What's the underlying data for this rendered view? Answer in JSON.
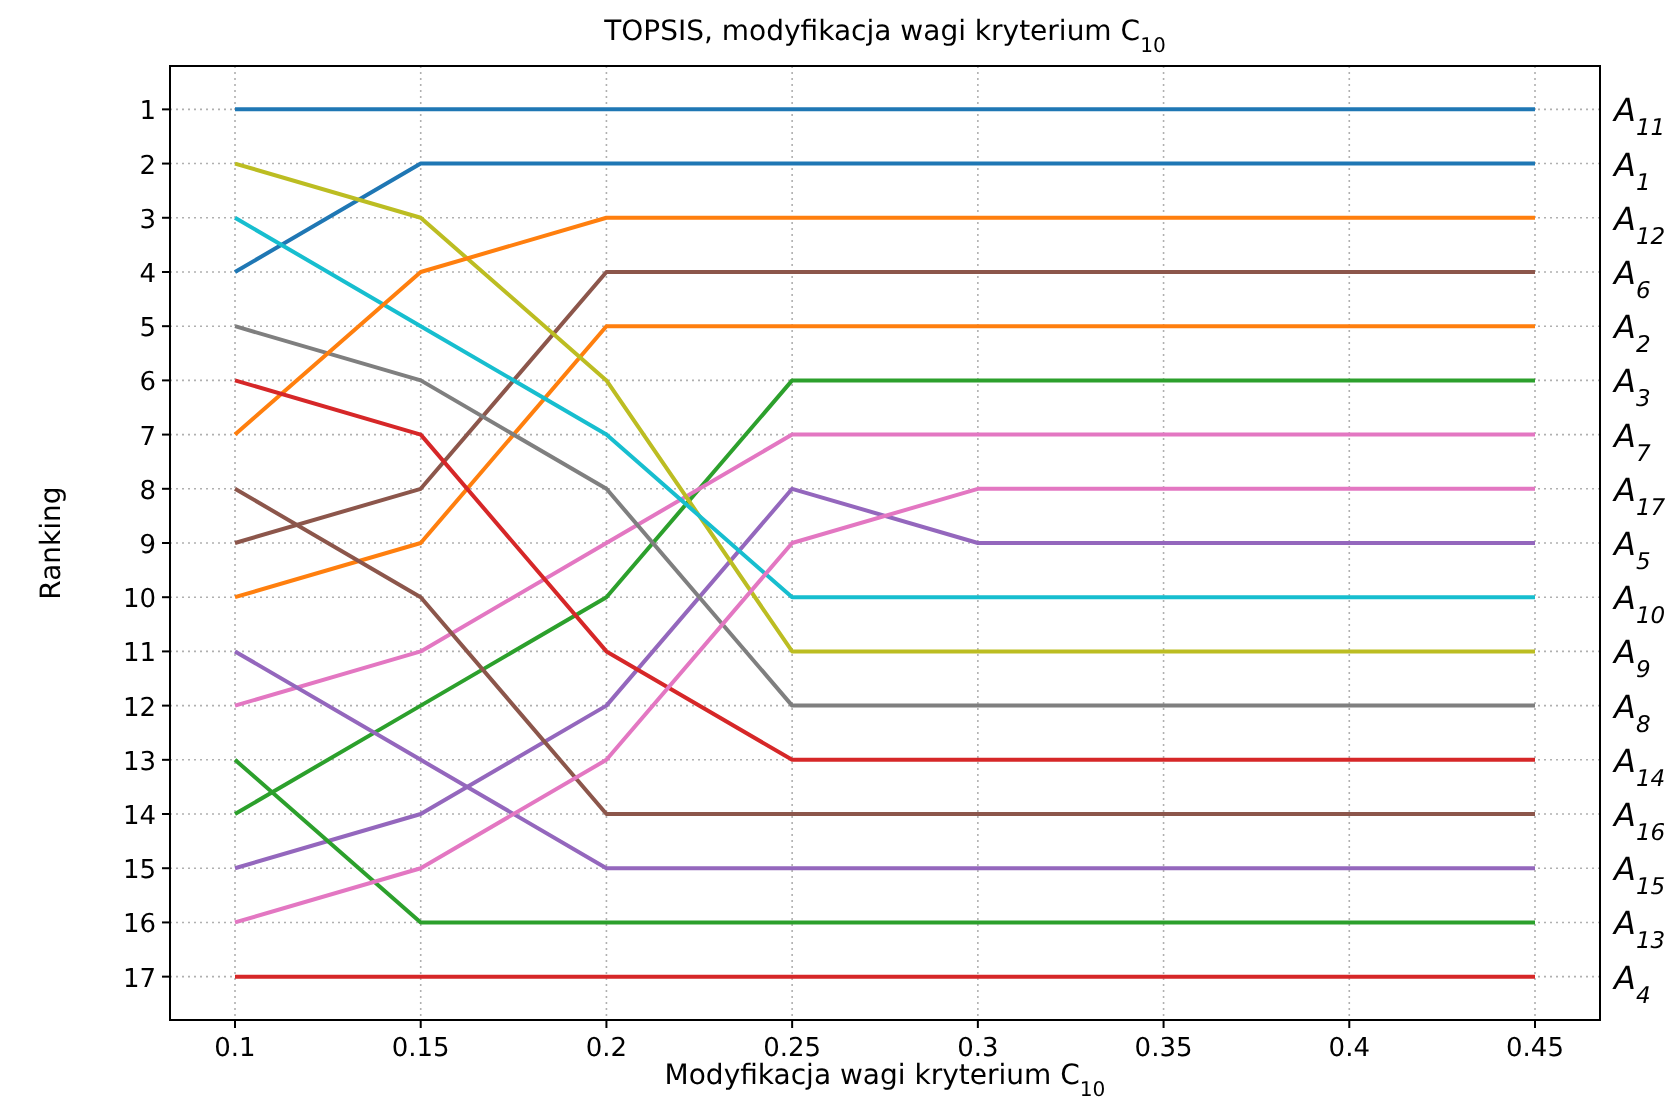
{
  "chart_data": {
    "type": "line",
    "title": "TOPSIS, modyfikacja wagi kryterium C$_{10}$",
    "xlabel": "Modyfikacja wagi kryterium C$_{10}$",
    "ylabel": "Ranking",
    "x": [
      0.1,
      0.15,
      0.2,
      0.25,
      0.3,
      0.35,
      0.4,
      0.45
    ],
    "xlim": [
      0.0825,
      0.4675
    ],
    "xticks": [
      0.1,
      0.15,
      0.2,
      0.25,
      0.3,
      0.35,
      0.4,
      0.45
    ],
    "ylim": [
      17.8,
      0.2
    ],
    "yticks": [
      1,
      2,
      3,
      4,
      5,
      6,
      7,
      8,
      9,
      10,
      11,
      12,
      13,
      14,
      15,
      16,
      17
    ],
    "grid": true,
    "marker": "none",
    "line_style": "solid",
    "series": [
      {
        "name": "A$_{1}$",
        "color": "#1f77b4",
        "values": [
          4,
          2,
          2,
          2,
          2,
          2,
          2,
          2
        ]
      },
      {
        "name": "A$_{2}$",
        "color": "#ff7f0e",
        "values": [
          10,
          9,
          5,
          5,
          5,
          5,
          5,
          5
        ]
      },
      {
        "name": "A$_{3}$",
        "color": "#2ca02c",
        "values": [
          14,
          12,
          10,
          6,
          6,
          6,
          6,
          6
        ]
      },
      {
        "name": "A$_{4}$",
        "color": "#d62728",
        "values": [
          17,
          17,
          17,
          17,
          17,
          17,
          17,
          17
        ]
      },
      {
        "name": "A$_{5}$",
        "color": "#9467bd",
        "values": [
          15,
          14,
          12,
          8,
          9,
          9,
          9,
          9
        ]
      },
      {
        "name": "A$_{6}$",
        "color": "#8c564b",
        "values": [
          9,
          8,
          4,
          4,
          4,
          4,
          4,
          4
        ]
      },
      {
        "name": "A$_{7}$",
        "color": "#e377c2",
        "values": [
          12,
          11,
          9,
          7,
          7,
          7,
          7,
          7
        ]
      },
      {
        "name": "A$_{8}$",
        "color": "#7f7f7f",
        "values": [
          5,
          6,
          8,
          12,
          12,
          12,
          12,
          12
        ]
      },
      {
        "name": "A$_{9}$",
        "color": "#bcbd22",
        "values": [
          2,
          3,
          6,
          11,
          11,
          11,
          11,
          11
        ]
      },
      {
        "name": "A$_{10}$",
        "color": "#17becf",
        "values": [
          3,
          5,
          7,
          10,
          10,
          10,
          10,
          10
        ]
      },
      {
        "name": "A$_{11}$",
        "color": "#1f77b4",
        "values": [
          1,
          1,
          1,
          1,
          1,
          1,
          1,
          1
        ]
      },
      {
        "name": "A$_{12}$",
        "color": "#ff7f0e",
        "values": [
          7,
          4,
          3,
          3,
          3,
          3,
          3,
          3
        ]
      },
      {
        "name": "A$_{13}$",
        "color": "#2ca02c",
        "values": [
          13,
          16,
          16,
          16,
          16,
          16,
          16,
          16
        ]
      },
      {
        "name": "A$_{14}$",
        "color": "#d62728",
        "values": [
          6,
          7,
          11,
          13,
          13,
          13,
          13,
          13
        ]
      },
      {
        "name": "A$_{15}$",
        "color": "#9467bd",
        "values": [
          11,
          13,
          15,
          15,
          15,
          15,
          15,
          15
        ]
      },
      {
        "name": "A$_{16}$",
        "color": "#8c564b",
        "values": [
          8,
          10,
          14,
          14,
          14,
          14,
          14,
          14
        ]
      },
      {
        "name": "A$_{17}$",
        "color": "#e377c2",
        "values": [
          16,
          15,
          13,
          9,
          8,
          8,
          8,
          8
        ]
      }
    ]
  }
}
